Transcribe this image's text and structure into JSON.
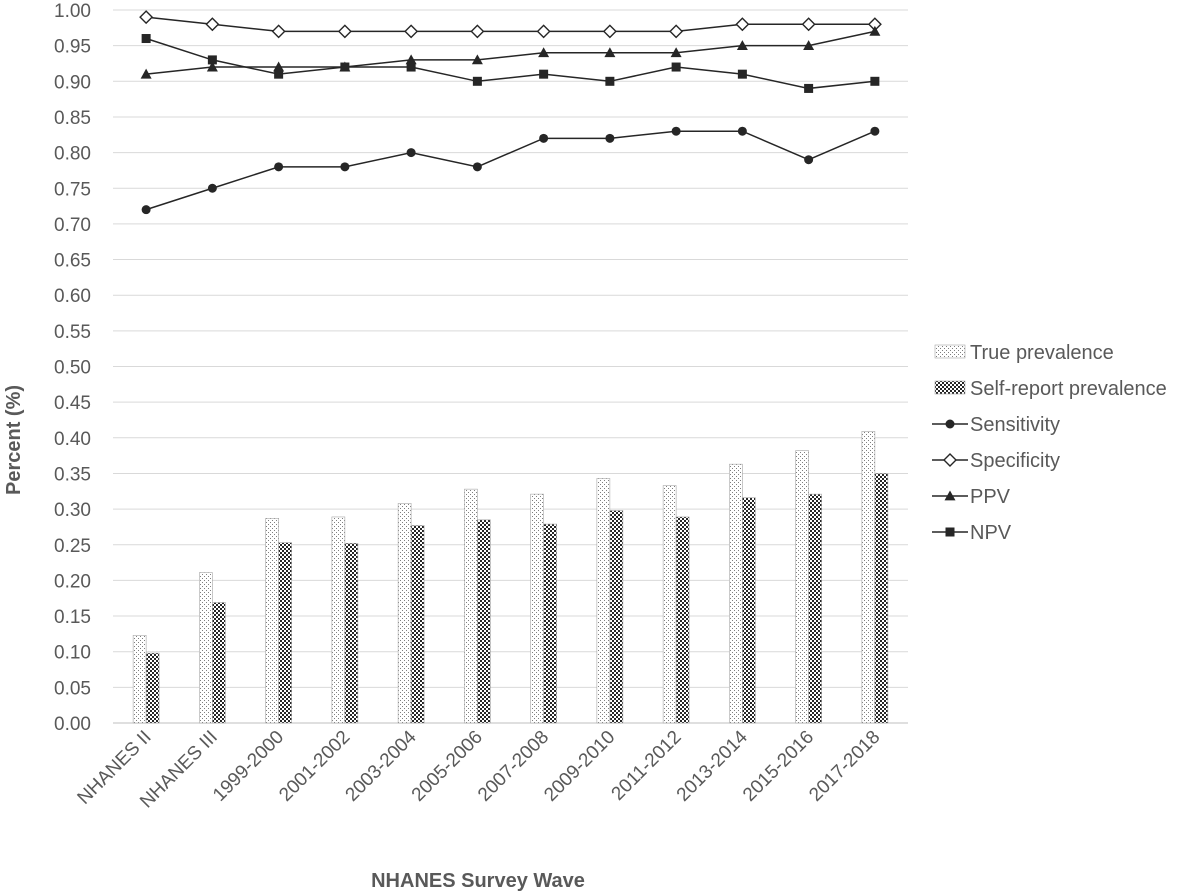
{
  "chart_data": {
    "type": "bar",
    "title": "",
    "xlabel": "NHANES Survey Wave",
    "ylabel": "Percent (%)",
    "ylim": [
      0,
      1
    ],
    "y_ticks": [
      "0.00",
      "0.05",
      "0.10",
      "0.15",
      "0.20",
      "0.25",
      "0.30",
      "0.35",
      "0.40",
      "0.45",
      "0.50",
      "0.55",
      "0.60",
      "0.65",
      "0.70",
      "0.75",
      "0.80",
      "0.85",
      "0.90",
      "0.95",
      "1.00"
    ],
    "grid": true,
    "legend_position": "right",
    "categories": [
      "NHANES II",
      "NHANES III",
      "1999-2000",
      "2001-2002",
      "2003-2004",
      "2005-2006",
      "2007-2008",
      "2009-2010",
      "2011-2012",
      "2013-2014",
      "2015-2016",
      "2017-2018"
    ],
    "series": [
      {
        "name": "True prevalence",
        "kind": "bar",
        "pattern": "light-dots",
        "values": [
          0.123,
          0.211,
          0.287,
          0.289,
          0.308,
          0.328,
          0.321,
          0.343,
          0.333,
          0.363,
          0.382,
          0.409
        ]
      },
      {
        "name": "Self-report prevalence",
        "kind": "bar",
        "pattern": "dark-checker",
        "values": [
          0.098,
          0.169,
          0.253,
          0.252,
          0.277,
          0.285,
          0.279,
          0.298,
          0.289,
          0.316,
          0.321,
          0.35
        ]
      },
      {
        "name": "Sensitivity",
        "kind": "line",
        "marker": "circle",
        "values": [
          0.72,
          0.75,
          0.78,
          0.78,
          0.8,
          0.78,
          0.82,
          0.82,
          0.83,
          0.83,
          0.79,
          0.83
        ]
      },
      {
        "name": "Specificity",
        "kind": "line",
        "marker": "diamond-open",
        "values": [
          0.99,
          0.98,
          0.97,
          0.97,
          0.97,
          0.97,
          0.97,
          0.97,
          0.97,
          0.98,
          0.98,
          0.98
        ]
      },
      {
        "name": "PPV",
        "kind": "line",
        "marker": "triangle",
        "values": [
          0.91,
          0.92,
          0.92,
          0.92,
          0.93,
          0.93,
          0.94,
          0.94,
          0.94,
          0.95,
          0.95,
          0.97
        ]
      },
      {
        "name": "NPV",
        "kind": "line",
        "marker": "square",
        "values": [
          0.96,
          0.93,
          0.91,
          0.92,
          0.92,
          0.9,
          0.91,
          0.9,
          0.92,
          0.91,
          0.89,
          0.9
        ]
      }
    ],
    "colors": {
      "line": "#262626",
      "grid": "#d9d9d9",
      "axis": "#bfbfbf",
      "text": "#595959"
    }
  }
}
